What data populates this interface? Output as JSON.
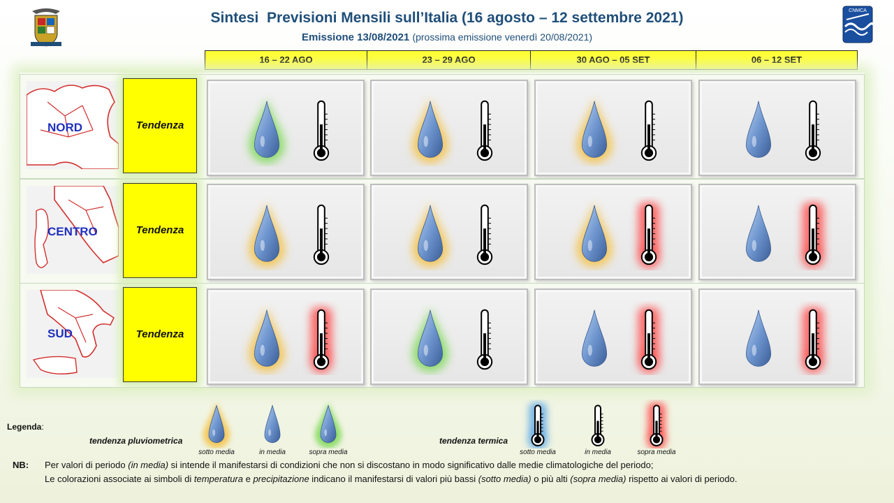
{
  "header": {
    "title": "Sintesi  Previsioni Mensili sull’Italia (16 agosto – 12 settembre 2021)",
    "emission": "Emissione 13/08/2021",
    "next_emission": "(prossima emissione venerdì 20/08/2021)",
    "right_logo_text": "CNMCA"
  },
  "periods": [
    "16 – 22 AGO",
    "23 – 29 AGO",
    "30 AGO – 05 SET",
    "06 – 12 SET"
  ],
  "rows": [
    {
      "region": "NORD",
      "tendency_label": "Tendenza",
      "forecasts": [
        {
          "precip": "sopra media",
          "temp": "in media"
        },
        {
          "precip": "sotto media",
          "temp": "in media"
        },
        {
          "precip": "sotto media",
          "temp": "in media"
        },
        {
          "precip": "in media",
          "temp": "in media"
        }
      ]
    },
    {
      "region": "CENTRO",
      "tendency_label": "Tendenza",
      "forecasts": [
        {
          "precip": "sotto media",
          "temp": "in media"
        },
        {
          "precip": "sotto media",
          "temp": "in media"
        },
        {
          "precip": "sotto media",
          "temp": "sopra media"
        },
        {
          "precip": "in media",
          "temp": "sopra media"
        }
      ]
    },
    {
      "region": "SUD",
      "tendency_label": "Tendenza",
      "forecasts": [
        {
          "precip": "sotto media",
          "temp": "sopra media"
        },
        {
          "precip": "sopra media",
          "temp": "in media"
        },
        {
          "precip": "in media",
          "temp": "sopra media"
        },
        {
          "precip": "in media",
          "temp": "sopra media"
        }
      ]
    }
  ],
  "legend": {
    "title": "Legenda",
    "title_colon": ":",
    "precip_label": "tendenza pluviometrica",
    "temp_label": "tendenza termica",
    "precip_items": [
      {
        "label": "sotto media",
        "level": "sotto media"
      },
      {
        "label": "in media",
        "level": "in media"
      },
      {
        "label": "sopra media",
        "level": "sopra media"
      }
    ],
    "temp_items": [
      {
        "label": "sotto media",
        "level": "sotto media"
      },
      {
        "label": "in media",
        "level": "in media"
      },
      {
        "label": "sopra media",
        "level": "sopra media"
      }
    ]
  },
  "glow_colors": {
    "precip": {
      "sotto media": "#f5c142",
      "in media": "none",
      "sopra media": "#7ed957"
    },
    "temp": {
      "sotto media": "#5aa6e6",
      "in media": "none",
      "sopra media": "#ff4a4a"
    }
  },
  "notes": {
    "label": "NB:",
    "line1_a": "Per valori di periodo ",
    "line1_b": "(in media)",
    "line1_c": " si intende il manifestarsi di condizioni che non si discostano in modo significativo dalle medie climatologiche del periodo;",
    "line2_a": "Le colorazioni associate ai simboli di ",
    "line2_b": "temperatura",
    "line2_c": " e ",
    "line2_d": "precipitazione",
    "line2_e": " indicano il manifestarsi di valori più bassi ",
    "line2_f": "(sotto media)",
    "line2_g": " o più alti ",
    "line2_h": "(sopra media)",
    "line2_i": " rispetto ai valori di periodo."
  }
}
